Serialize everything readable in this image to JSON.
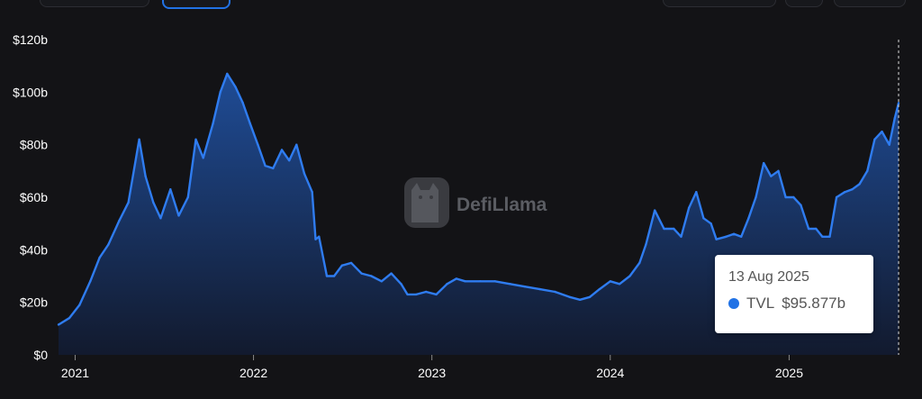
{
  "toolbar": {
    "controls": [
      {
        "name": "range-selector"
      },
      {
        "name": "toggle-active"
      },
      {
        "name": "option-a"
      },
      {
        "name": "option-b"
      },
      {
        "name": "option-c"
      }
    ]
  },
  "watermark": {
    "text": "DefiLlama",
    "icon": "llama-logo-icon"
  },
  "colors": {
    "line": "#2f7cf0",
    "fill_top": "#1f4c96",
    "fill_bottom": "#121a2e",
    "dot": "#2172e5"
  },
  "tooltip": {
    "date": "13 Aug 2025",
    "series": "TVL",
    "value": "$95.877b"
  },
  "chart_data": {
    "type": "area",
    "title": "",
    "xlabel": "",
    "ylabel": "",
    "ylim": [
      0,
      120
    ],
    "xlim": [
      "2020-11-28",
      "2025-08-13"
    ],
    "y_ticks": [
      "$0",
      "$20b",
      "$40b",
      "$60b",
      "$80b",
      "$100b",
      "$120b"
    ],
    "x_ticks": [
      "2021",
      "2022",
      "2023",
      "2024",
      "2025"
    ],
    "grid": false,
    "series": [
      {
        "name": "TVL",
        "x": [
          "2020-11-28",
          "2020-12-20",
          "2021-01-10",
          "2021-02-01",
          "2021-02-20",
          "2021-03-10",
          "2021-04-01",
          "2021-04-20",
          "2021-05-12",
          "2021-05-25",
          "2021-06-10",
          "2021-06-25",
          "2021-07-15",
          "2021-08-01",
          "2021-08-20",
          "2021-09-05",
          "2021-09-20",
          "2021-10-10",
          "2021-10-25",
          "2021-11-08",
          "2021-11-25",
          "2021-12-10",
          "2021-12-25",
          "2022-01-10",
          "2022-01-25",
          "2022-02-10",
          "2022-02-28",
          "2022-03-15",
          "2022-03-30",
          "2022-04-15",
          "2022-05-01",
          "2022-05-08",
          "2022-05-15",
          "2022-05-31",
          "2022-06-15",
          "2022-07-01",
          "2022-07-20",
          "2022-08-10",
          "2022-08-30",
          "2022-09-20",
          "2022-10-10",
          "2022-10-30",
          "2022-11-12",
          "2022-11-30",
          "2022-12-20",
          "2023-01-10",
          "2023-02-01",
          "2023-02-20",
          "2023-03-10",
          "2023-04-10",
          "2023-05-10",
          "2023-06-10",
          "2023-07-10",
          "2023-08-10",
          "2023-09-10",
          "2023-10-10",
          "2023-10-31",
          "2023-11-20",
          "2023-12-10",
          "2024-01-01",
          "2024-01-20",
          "2024-02-10",
          "2024-03-01",
          "2024-03-14",
          "2024-04-01",
          "2024-04-20",
          "2024-05-10",
          "2024-05-25",
          "2024-06-10",
          "2024-06-25",
          "2024-07-10",
          "2024-07-25",
          "2024-08-05",
          "2024-08-25",
          "2024-09-10",
          "2024-09-25",
          "2024-10-10",
          "2024-10-25",
          "2024-11-10",
          "2024-11-25",
          "2024-12-10",
          "2024-12-25",
          "2025-01-10",
          "2025-01-25",
          "2025-02-10",
          "2025-02-25",
          "2025-03-10",
          "2025-03-25",
          "2025-04-08",
          "2025-04-25",
          "2025-05-10",
          "2025-05-25",
          "2025-06-10",
          "2025-06-25",
          "2025-07-10",
          "2025-07-25",
          "2025-08-05",
          "2025-08-13"
        ],
        "values": [
          11.5,
          14,
          19,
          28,
          37,
          42,
          51,
          58,
          82,
          68,
          58,
          52,
          63,
          53,
          60,
          82,
          75,
          88,
          100,
          107,
          102,
          96,
          88,
          80,
          72,
          71,
          78,
          74,
          80,
          69,
          62,
          44,
          45,
          30,
          30,
          34,
          35,
          31,
          30,
          28,
          31,
          27,
          23,
          23,
          24,
          23,
          27,
          29,
          28,
          28,
          28,
          27,
          26,
          25,
          24,
          22,
          21,
          22,
          25,
          28,
          27,
          30,
          35,
          42,
          55,
          48,
          48,
          45,
          56,
          62,
          52,
          50,
          44,
          45,
          46,
          45,
          52,
          60,
          73,
          68,
          70,
          60,
          60,
          57,
          48,
          48,
          45,
          45,
          60,
          62,
          63,
          65,
          70,
          82,
          85,
          80,
          90,
          95.877
        ]
      }
    ]
  }
}
